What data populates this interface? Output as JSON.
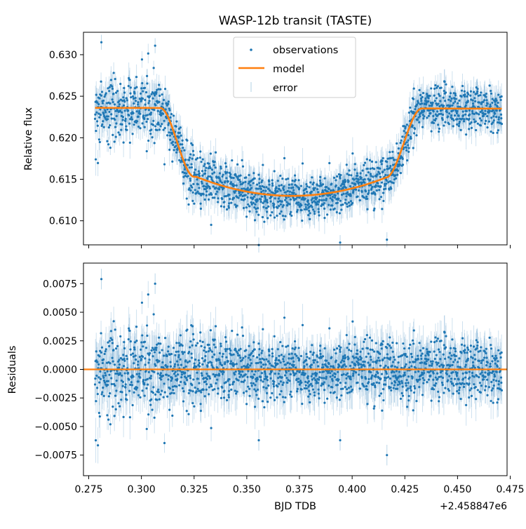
{
  "chart_data": [
    {
      "type": "scatter",
      "title": "WASP-12b transit (TASTE)",
      "xlabel": "",
      "ylabel": "Relative flux",
      "xlim": [
        0.2725,
        0.4735
      ],
      "ylim": [
        0.6071,
        0.6327
      ],
      "yticks": [
        "0.610",
        "0.615",
        "0.620",
        "0.625",
        "0.630"
      ],
      "ytick_values": [
        0.61,
        0.615,
        0.62,
        0.625,
        0.63
      ],
      "xtick_values": [
        0.275,
        0.3,
        0.325,
        0.35,
        0.375,
        0.4,
        0.425,
        0.45,
        0.475
      ],
      "legend": {
        "position": "top-center",
        "entries": [
          "observations",
          "model",
          "error"
        ]
      },
      "transit": {
        "x_start": 0.278,
        "x_end": 0.471,
        "ingress_start": 0.309,
        "ingress_end": 0.325,
        "egress_start": 0.416,
        "egress_end": 0.433,
        "out_of_transit_flux_start": 0.6236,
        "out_of_transit_flux_end": 0.6235,
        "min_flux": 0.613,
        "mid_time": 0.3715
      },
      "series": [
        {
          "name": "observations",
          "color": "#1f77b4",
          "scatter_sigma": 0.0013
        },
        {
          "name": "model",
          "color": "#ff7f0e"
        },
        {
          "name": "error",
          "color": "#1f77b4"
        }
      ]
    },
    {
      "type": "scatter",
      "title": "",
      "xlabel": "BJD TDB",
      "ylabel": "Residuals",
      "x_offset_label": "+2.458847e6",
      "xlim": [
        0.2725,
        0.4735
      ],
      "ylim": [
        -0.0093,
        0.0093
      ],
      "xticks": [
        "0.275",
        "0.300",
        "0.325",
        "0.350",
        "0.375",
        "0.400",
        "0.425",
        "0.450",
        "0.475"
      ],
      "xtick_values": [
        0.275,
        0.3,
        0.325,
        0.35,
        0.375,
        0.4,
        0.425,
        0.45,
        0.475
      ],
      "yticks": [
        "−0.0075",
        "−0.0050",
        "−0.0025",
        "0.0000",
        "0.0025",
        "0.0050",
        "0.0075"
      ],
      "ytick_values": [
        -0.0075,
        -0.005,
        -0.0025,
        0.0,
        0.0025,
        0.005,
        0.0075
      ],
      "zero_line": 0.0,
      "residual_sigma_early": 0.0022,
      "residual_sigma_late": 0.0013,
      "outliers": [
        {
          "x": 0.281,
          "y": 0.0079
        },
        {
          "x": 0.3065,
          "y": 0.0075
        },
        {
          "x": 0.3557,
          "y": -0.0062
        },
        {
          "x": 0.3943,
          "y": -0.0062
        },
        {
          "x": 0.4165,
          "y": -0.0075
        }
      ],
      "series": [
        {
          "name": "observations",
          "color": "#1f77b4"
        },
        {
          "name": "model",
          "color": "#ff7f0e"
        }
      ]
    }
  ]
}
